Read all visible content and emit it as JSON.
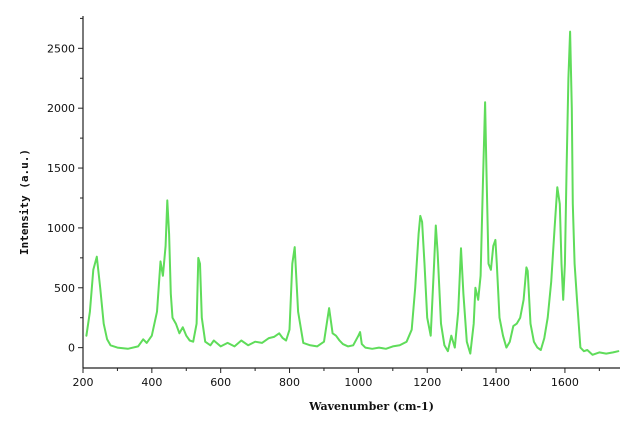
{
  "chart_data": {
    "type": "line",
    "title": "",
    "xlabel": "Wavenumber (cm-1)",
    "ylabel": "Intensity (a.u.)",
    "xlim": [
      200,
      1760
    ],
    "ylim": [
      -170,
      2770
    ],
    "x_ticks": [
      200,
      400,
      600,
      800,
      1000,
      1200,
      1400,
      1600
    ],
    "y_ticks": [
      0,
      500,
      1000,
      1500,
      2000,
      2500
    ],
    "grid": false,
    "legend": "none",
    "series_color": "#5fdc5a",
    "series": [
      {
        "x": [
          210,
          220,
          230,
          240,
          250,
          260,
          270,
          280,
          300,
          330,
          360,
          375,
          385,
          400,
          415,
          425,
          432,
          440,
          445,
          450,
          455,
          460,
          470,
          480,
          490,
          500,
          510,
          520,
          530,
          535,
          540,
          545,
          555,
          570,
          580,
          600,
          620,
          640,
          660,
          680,
          700,
          720,
          740,
          755,
          770,
          780,
          790,
          800,
          808,
          815,
          825,
          840,
          860,
          880,
          900,
          915,
          925,
          935,
          945,
          955,
          970,
          985,
          1000,
          1005,
          1010,
          1020,
          1040,
          1060,
          1080,
          1100,
          1120,
          1140,
          1155,
          1165,
          1175,
          1180,
          1185,
          1192,
          1200,
          1210,
          1220,
          1225,
          1230,
          1240,
          1250,
          1260,
          1270,
          1280,
          1290,
          1298,
          1305,
          1315,
          1325,
          1335,
          1340,
          1348,
          1355,
          1362,
          1368,
          1372,
          1378,
          1385,
          1392,
          1398,
          1402,
          1410,
          1420,
          1430,
          1440,
          1450,
          1460,
          1470,
          1480,
          1488,
          1492,
          1500,
          1510,
          1520,
          1530,
          1540,
          1550,
          1560,
          1570,
          1578,
          1585,
          1590,
          1595,
          1600,
          1605,
          1610,
          1615,
          1620,
          1623,
          1628,
          1635,
          1645,
          1655,
          1665,
          1680,
          1700,
          1720,
          1740,
          1755
        ],
        "values": [
          100,
          300,
          650,
          760,
          500,
          200,
          70,
          20,
          0,
          -10,
          10,
          70,
          40,
          100,
          300,
          720,
          600,
          850,
          1230,
          950,
          450,
          250,
          200,
          120,
          170,
          100,
          60,
          50,
          200,
          750,
          700,
          250,
          50,
          20,
          60,
          10,
          40,
          10,
          60,
          20,
          50,
          40,
          80,
          90,
          120,
          80,
          60,
          150,
          700,
          840,
          300,
          40,
          20,
          10,
          50,
          330,
          120,
          100,
          60,
          30,
          10,
          20,
          100,
          130,
          30,
          0,
          -10,
          0,
          -10,
          10,
          20,
          50,
          150,
          500,
          950,
          1100,
          1050,
          700,
          250,
          100,
          700,
          1020,
          800,
          200,
          20,
          -30,
          100,
          0,
          300,
          830,
          450,
          50,
          -50,
          200,
          500,
          400,
          600,
          1400,
          2050,
          1500,
          700,
          650,
          850,
          900,
          700,
          250,
          100,
          0,
          50,
          180,
          200,
          250,
          400,
          670,
          640,
          200,
          50,
          0,
          -20,
          80,
          250,
          550,
          1000,
          1340,
          1200,
          700,
          400,
          700,
          1500,
          2250,
          2640,
          2000,
          1200,
          700,
          400,
          0,
          -30,
          -20,
          -60,
          -40,
          -50,
          -40,
          -30
        ]
      }
    ]
  }
}
